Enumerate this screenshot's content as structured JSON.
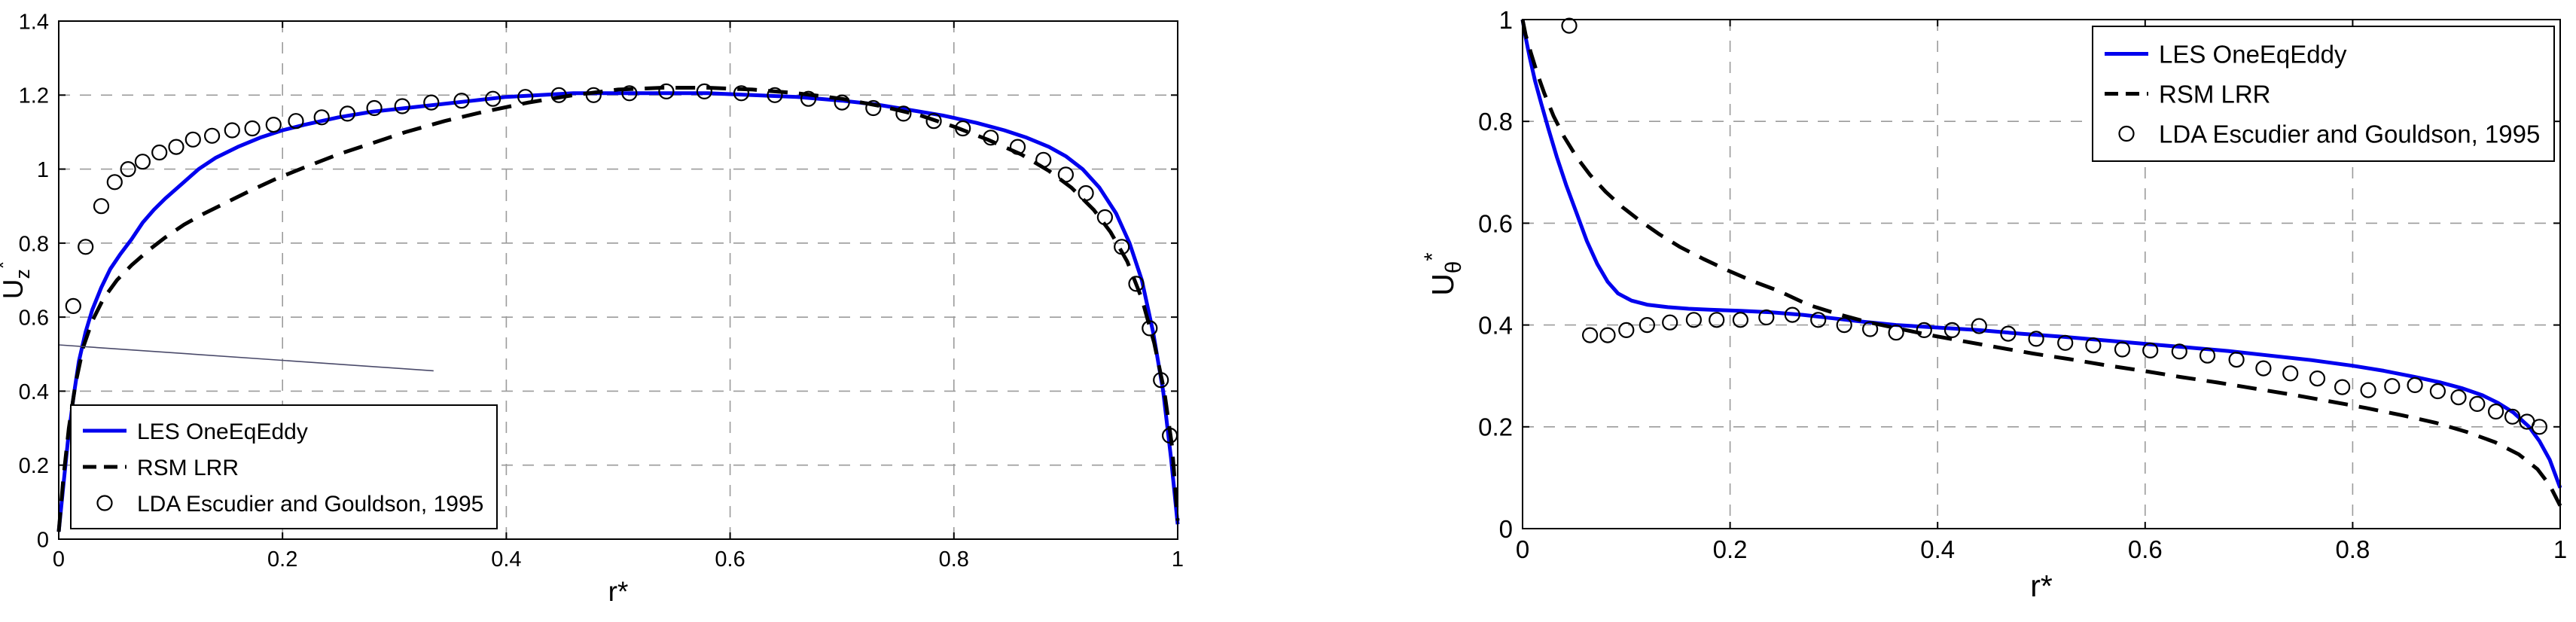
{
  "page": {
    "background": "#ffffff"
  },
  "chart_data": [
    {
      "id": "left",
      "type": "line",
      "title": "",
      "xlabel": "r*",
      "ylabel": {
        "base": "U",
        "sub": "z",
        "sup": "*"
      },
      "xlim": [
        0,
        1
      ],
      "ylim": [
        0,
        1.4
      ],
      "xticks": [
        0,
        0.2,
        0.4,
        0.6,
        0.8,
        1
      ],
      "xtick_labels": [
        "0",
        "0.2",
        "0.4",
        "0.6",
        "0.8",
        "1"
      ],
      "yticks": [
        0,
        0.2,
        0.4,
        0.6,
        0.8,
        1,
        1.2,
        1.4
      ],
      "ytick_labels": [
        "0",
        "0.2",
        "0.4",
        "0.6",
        "0.8",
        "1",
        "1.2",
        "1.4"
      ],
      "grid": true,
      "grid_color": "#9b9b9b",
      "legend": {
        "position": "bottom-left",
        "offset": [
          16,
          14
        ]
      },
      "series": [
        {
          "name": "LES OneEqEddy",
          "type": "line",
          "color": "#0000ee",
          "width": 5,
          "x": [
            0,
            0.004,
            0.008,
            0.013,
            0.018,
            0.024,
            0.03,
            0.038,
            0.046,
            0.055,
            0.065,
            0.075,
            0.085,
            0.095,
            0.11,
            0.125,
            0.14,
            0.16,
            0.18,
            0.2,
            0.22,
            0.25,
            0.28,
            0.31,
            0.34,
            0.37,
            0.4,
            0.43,
            0.46,
            0.5,
            0.54,
            0.58,
            0.62,
            0.66,
            0.7,
            0.73,
            0.76,
            0.79,
            0.82,
            0.845,
            0.865,
            0.885,
            0.9,
            0.915,
            0.93,
            0.945,
            0.957,
            0.968,
            0.978,
            0.987,
            0.994,
            1.0
          ],
          "y": [
            0.02,
            0.14,
            0.26,
            0.38,
            0.48,
            0.56,
            0.62,
            0.68,
            0.73,
            0.77,
            0.81,
            0.855,
            0.89,
            0.92,
            0.96,
            1.0,
            1.03,
            1.06,
            1.085,
            1.105,
            1.12,
            1.14,
            1.155,
            1.165,
            1.175,
            1.185,
            1.195,
            1.2,
            1.205,
            1.205,
            1.205,
            1.205,
            1.2,
            1.195,
            1.185,
            1.175,
            1.16,
            1.145,
            1.125,
            1.105,
            1.085,
            1.06,
            1.035,
            1.0,
            0.95,
            0.88,
            0.8,
            0.7,
            0.56,
            0.4,
            0.22,
            0.04
          ]
        },
        {
          "name": "RSM LRR",
          "type": "line",
          "color": "#000000",
          "width": 5,
          "dash": "26 15",
          "x": [
            0,
            0.004,
            0.009,
            0.015,
            0.022,
            0.03,
            0.04,
            0.052,
            0.065,
            0.08,
            0.095,
            0.112,
            0.13,
            0.15,
            0.17,
            0.195,
            0.22,
            0.25,
            0.28,
            0.31,
            0.345,
            0.38,
            0.42,
            0.46,
            0.5,
            0.54,
            0.58,
            0.62,
            0.66,
            0.7,
            0.735,
            0.77,
            0.8,
            0.83,
            0.86,
            0.885,
            0.905,
            0.925,
            0.94,
            0.955,
            0.968,
            0.979,
            0.988,
            0.995,
            1.0
          ],
          "y": [
            0.02,
            0.16,
            0.3,
            0.42,
            0.52,
            0.59,
            0.65,
            0.7,
            0.74,
            0.78,
            0.815,
            0.85,
            0.88,
            0.91,
            0.94,
            0.975,
            1.005,
            1.04,
            1.07,
            1.1,
            1.13,
            1.155,
            1.18,
            1.2,
            1.215,
            1.22,
            1.22,
            1.215,
            1.205,
            1.19,
            1.17,
            1.145,
            1.115,
            1.08,
            1.04,
            0.995,
            0.95,
            0.89,
            0.83,
            0.75,
            0.65,
            0.53,
            0.4,
            0.25,
            0.05
          ]
        },
        {
          "name": "LDA Escudier and Gouldson, 1995",
          "type": "scatter",
          "color": "#000000",
          "marker": "circle",
          "marker_size": 9.5,
          "x": [
            0.013,
            0.024,
            0.038,
            0.05,
            0.062,
            0.075,
            0.09,
            0.105,
            0.12,
            0.137,
            0.155,
            0.173,
            0.192,
            0.212,
            0.235,
            0.258,
            0.282,
            0.307,
            0.333,
            0.36,
            0.388,
            0.417,
            0.447,
            0.478,
            0.51,
            0.543,
            0.577,
            0.61,
            0.64,
            0.67,
            0.7,
            0.728,
            0.755,
            0.782,
            0.808,
            0.833,
            0.857,
            0.88,
            0.9,
            0.918,
            0.935,
            0.95,
            0.963,
            0.975,
            0.985,
            0.993
          ],
          "y": [
            0.63,
            0.79,
            0.9,
            0.965,
            1.0,
            1.02,
            1.045,
            1.06,
            1.08,
            1.09,
            1.105,
            1.11,
            1.12,
            1.13,
            1.14,
            1.15,
            1.165,
            1.17,
            1.18,
            1.185,
            1.19,
            1.195,
            1.2,
            1.2,
            1.205,
            1.21,
            1.21,
            1.205,
            1.2,
            1.19,
            1.18,
            1.165,
            1.15,
            1.13,
            1.11,
            1.085,
            1.06,
            1.025,
            0.985,
            0.935,
            0.87,
            0.79,
            0.69,
            0.57,
            0.43,
            0.28
          ]
        },
        {
          "name": "stray line",
          "legend": false,
          "type": "line",
          "color": "#4a4a6a",
          "width": 1.6,
          "x": [
            0,
            0.335
          ],
          "y": [
            0.525,
            0.455
          ]
        }
      ]
    },
    {
      "id": "right",
      "type": "line",
      "title": "",
      "xlabel": "r*",
      "ylabel": {
        "base": "U",
        "sub": "θ",
        "sup": "*"
      },
      "xlim": [
        0,
        1
      ],
      "ylim": [
        0,
        1
      ],
      "xticks": [
        0,
        0.2,
        0.4,
        0.6,
        0.8,
        1
      ],
      "xtick_labels": [
        "0",
        "0.2",
        "0.4",
        "0.6",
        "0.8",
        "1"
      ],
      "yticks": [
        0,
        0.2,
        0.4,
        0.6,
        0.8,
        1
      ],
      "ytick_labels": [
        "0",
        "0.2",
        "0.4",
        "0.6",
        "0.8",
        "1"
      ],
      "grid": true,
      "grid_color": "#9b9b9b",
      "legend": {
        "position": "top-right",
        "offset": [
          8,
          9
        ]
      },
      "series": [
        {
          "name": "LES OneEqEddy",
          "type": "line",
          "color": "#0000ee",
          "width": 5,
          "x": [
            0,
            0.003,
            0.007,
            0.012,
            0.018,
            0.025,
            0.033,
            0.042,
            0.052,
            0.062,
            0.072,
            0.082,
            0.092,
            0.105,
            0.12,
            0.14,
            0.16,
            0.18,
            0.21,
            0.24,
            0.27,
            0.3,
            0.33,
            0.36,
            0.4,
            0.44,
            0.48,
            0.52,
            0.56,
            0.6,
            0.64,
            0.68,
            0.72,
            0.76,
            0.8,
            0.83,
            0.86,
            0.885,
            0.905,
            0.925,
            0.94,
            0.955,
            0.97,
            0.98,
            0.99,
            1.0
          ],
          "y": [
            1.0,
            0.965,
            0.925,
            0.88,
            0.835,
            0.785,
            0.73,
            0.675,
            0.62,
            0.565,
            0.52,
            0.485,
            0.462,
            0.448,
            0.44,
            0.435,
            0.432,
            0.43,
            0.428,
            0.425,
            0.42,
            0.413,
            0.406,
            0.4,
            0.395,
            0.39,
            0.383,
            0.377,
            0.37,
            0.363,
            0.356,
            0.349,
            0.34,
            0.331,
            0.32,
            0.31,
            0.298,
            0.287,
            0.276,
            0.262,
            0.247,
            0.228,
            0.2,
            0.172,
            0.135,
            0.08
          ]
        },
        {
          "name": "RSM LRR",
          "type": "line",
          "color": "#000000",
          "width": 5,
          "dash": "26 15",
          "x": [
            0,
            0.003,
            0.008,
            0.014,
            0.021,
            0.03,
            0.04,
            0.052,
            0.065,
            0.08,
            0.096,
            0.113,
            0.132,
            0.152,
            0.174,
            0.197,
            0.222,
            0.248,
            0.275,
            0.303,
            0.332,
            0.362,
            0.393,
            0.425,
            0.458,
            0.492,
            0.527,
            0.562,
            0.598,
            0.634,
            0.67,
            0.706,
            0.742,
            0.778,
            0.813,
            0.847,
            0.88,
            0.91,
            0.937,
            0.96,
            0.978,
            0.99,
            1.0
          ],
          "y": [
            1.0,
            0.97,
            0.935,
            0.895,
            0.855,
            0.81,
            0.77,
            0.73,
            0.695,
            0.662,
            0.632,
            0.605,
            0.578,
            0.553,
            0.53,
            0.508,
            0.486,
            0.466,
            0.44,
            0.422,
            0.406,
            0.393,
            0.38,
            0.368,
            0.356,
            0.344,
            0.333,
            0.321,
            0.31,
            0.298,
            0.287,
            0.275,
            0.263,
            0.25,
            0.237,
            0.223,
            0.208,
            0.19,
            0.17,
            0.146,
            0.117,
            0.085,
            0.045
          ]
        },
        {
          "name": "LDA Escudier and Gouldson, 1995",
          "type": "scatter",
          "color": "#000000",
          "marker": "circle",
          "marker_size": 9.5,
          "x": [
            0.045,
            0.065,
            0.082,
            0.1,
            0.12,
            0.142,
            0.165,
            0.187,
            0.21,
            0.235,
            0.26,
            0.285,
            0.31,
            0.335,
            0.36,
            0.387,
            0.414,
            0.44,
            0.468,
            0.495,
            0.523,
            0.55,
            0.578,
            0.605,
            0.633,
            0.66,
            0.688,
            0.714,
            0.74,
            0.766,
            0.79,
            0.815,
            0.838,
            0.86,
            0.882,
            0.902,
            0.92,
            0.938,
            0.954,
            0.968,
            0.98
          ],
          "y": [
            0.988,
            0.38,
            0.38,
            0.39,
            0.4,
            0.405,
            0.41,
            0.41,
            0.41,
            0.415,
            0.42,
            0.41,
            0.4,
            0.392,
            0.385,
            0.39,
            0.39,
            0.398,
            0.383,
            0.373,
            0.365,
            0.36,
            0.352,
            0.35,
            0.348,
            0.34,
            0.332,
            0.315,
            0.305,
            0.295,
            0.278,
            0.272,
            0.28,
            0.282,
            0.27,
            0.258,
            0.245,
            0.23,
            0.22,
            0.21,
            0.2
          ]
        }
      ]
    }
  ]
}
